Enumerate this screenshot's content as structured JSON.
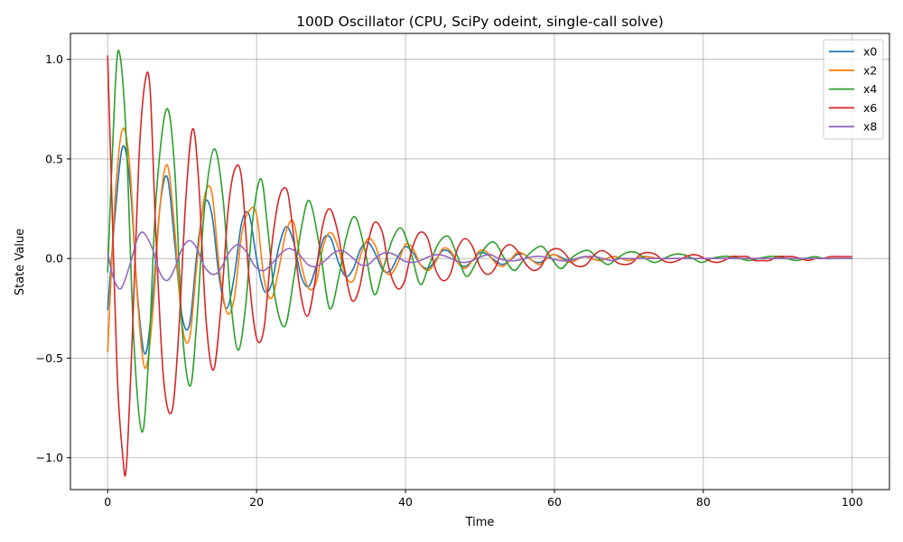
{
  "chart_data": {
    "type": "line",
    "title": "100D Oscillator (CPU, SciPy odeint, single-call solve)",
    "xlabel": "Time",
    "ylabel": "State Value",
    "xlim": [
      -5,
      105
    ],
    "ylim": [
      -1.16,
      1.13
    ],
    "xticks": [
      0,
      20,
      40,
      60,
      80,
      100
    ],
    "xtick_labels": [
      "0",
      "20",
      "40",
      "60",
      "80",
      "100"
    ],
    "yticks": [
      -1.0,
      -0.5,
      0.0,
      0.5,
      1.0
    ],
    "ytick_labels": [
      "−1.0",
      "−0.5",
      "0.0",
      "0.5",
      "1.0"
    ],
    "grid": true,
    "legend_position": "top-right",
    "series": [
      {
        "name": "x0",
        "color": "#1f77b4",
        "x": [
          0,
          1,
          2,
          3,
          4,
          5,
          6,
          7,
          8,
          9,
          10,
          11,
          12,
          13,
          14,
          15,
          16,
          17,
          18,
          19,
          20,
          21,
          22,
          23,
          24,
          25,
          26,
          27,
          28,
          29,
          30,
          31,
          32,
          33,
          34,
          35,
          36,
          37,
          38,
          39,
          40,
          41,
          42,
          43,
          44,
          45,
          46,
          47,
          48,
          49,
          50,
          51,
          52,
          53,
          54,
          55,
          56,
          57,
          58,
          59,
          60,
          62,
          64,
          66,
          68,
          70,
          72,
          74,
          76,
          78,
          80,
          82,
          84,
          86,
          88,
          90,
          92,
          94,
          96,
          98,
          100
        ],
        "y": [
          -0.26,
          0.22,
          0.56,
          0.38,
          -0.18,
          -0.48,
          -0.22,
          0.25,
          0.41,
          0.08,
          -0.29,
          -0.33,
          0.03,
          0.28,
          0.22,
          -0.1,
          -0.25,
          -0.09,
          0.18,
          0.22,
          0.0,
          -0.16,
          -0.13,
          0.06,
          0.16,
          0.08,
          -0.09,
          -0.14,
          -0.04,
          0.1,
          0.1,
          -0.02,
          -0.09,
          -0.05,
          0.05,
          0.08,
          0.02,
          -0.06,
          -0.06,
          0.01,
          0.06,
          0.03,
          -0.03,
          -0.05,
          -0.01,
          0.04,
          0.03,
          -0.02,
          -0.04,
          -0.01,
          0.03,
          0.02,
          -0.01,
          -0.03,
          -0.01,
          0.02,
          0.02,
          -0.01,
          -0.02,
          0.0,
          0.02,
          -0.01,
          0.01,
          -0.01,
          0.01,
          -0.01,
          0.01,
          0.0,
          0.0,
          0.0,
          0.0,
          0.0,
          0.0,
          0.0,
          0.0,
          0.0,
          0.0,
          0.0,
          0.0,
          0.0,
          0.0
        ]
      },
      {
        "name": "x2",
        "color": "#ff7f0e",
        "x": [
          0,
          1,
          2,
          3,
          4,
          5,
          6,
          7,
          8,
          9,
          10,
          11,
          12,
          13,
          14,
          15,
          16,
          17,
          18,
          19,
          20,
          21,
          22,
          23,
          24,
          25,
          26,
          27,
          28,
          29,
          30,
          31,
          32,
          33,
          34,
          35,
          36,
          37,
          38,
          39,
          40,
          41,
          42,
          43,
          44,
          45,
          46,
          47,
          48,
          49,
          50,
          51,
          52,
          53,
          54,
          55,
          56,
          57,
          58,
          59,
          60,
          62,
          64,
          66,
          68,
          70,
          72,
          74,
          76,
          78,
          80,
          82,
          84,
          86,
          88,
          90,
          92,
          94,
          96,
          98,
          100
        ],
        "y": [
          -0.47,
          0.3,
          0.65,
          0.45,
          -0.2,
          -0.55,
          -0.3,
          0.25,
          0.47,
          0.15,
          -0.33,
          -0.4,
          -0.02,
          0.31,
          0.33,
          -0.05,
          -0.27,
          -0.2,
          0.12,
          0.24,
          0.22,
          -0.1,
          -0.2,
          -0.05,
          0.14,
          0.18,
          -0.03,
          -0.15,
          -0.12,
          0.07,
          0.13,
          0.05,
          -0.09,
          -0.11,
          0.02,
          0.1,
          0.06,
          -0.05,
          -0.08,
          -0.02,
          0.07,
          0.05,
          -0.03,
          -0.06,
          -0.02,
          0.05,
          0.04,
          -0.02,
          -0.05,
          -0.01,
          0.04,
          0.03,
          -0.02,
          -0.04,
          -0.01,
          0.03,
          0.02,
          -0.01,
          -0.03,
          0.0,
          0.02,
          -0.02,
          0.01,
          -0.01,
          0.01,
          -0.01,
          0.01,
          0.0,
          0.0,
          0.0,
          0.0,
          0.0,
          0.0,
          0.0,
          0.0,
          0.0,
          0.0,
          0.0,
          0.0,
          0.0,
          0.0
        ]
      },
      {
        "name": "x4",
        "color": "#2ca02c",
        "x": [
          0,
          1,
          1.6,
          2.5,
          3.5,
          4.6,
          5.5,
          6.5,
          7.9,
          9,
          10,
          11.1,
          12,
          13,
          14.3,
          15.5,
          16.5,
          17.5,
          18.5,
          19.5,
          20.6,
          21.5,
          22.5,
          23.8,
          25,
          26,
          27.1,
          28.5,
          29.8,
          31,
          32,
          33.2,
          34.5,
          35.8,
          37,
          38.3,
          39.5,
          40.8,
          42,
          43.2,
          44.5,
          45.8,
          47,
          48.2,
          49.5,
          50.8,
          52,
          53.3,
          54.6,
          55.8,
          57.1,
          58.4,
          59.6,
          60.9,
          62.2,
          63.4,
          64.6,
          65.9,
          67.2,
          68.4,
          69.7,
          71,
          72.2,
          73.5,
          74.7,
          76,
          77.3,
          78.6,
          79.8,
          81.1,
          82.4,
          83.6,
          84.9,
          86.1,
          87.4,
          88.7,
          89.9,
          91.2,
          92.5,
          93.7,
          95,
          96.2,
          97.5,
          98.8,
          100
        ],
        "y": [
          -0.07,
          0.85,
          1.03,
          0.6,
          -0.4,
          -0.87,
          -0.5,
          0.3,
          0.75,
          0.45,
          -0.35,
          -0.64,
          -0.3,
          0.25,
          0.55,
          0.3,
          -0.2,
          -0.46,
          -0.25,
          0.2,
          0.4,
          0.15,
          -0.2,
          -0.34,
          -0.1,
          0.15,
          0.29,
          0.05,
          -0.25,
          -0.1,
          0.1,
          0.21,
          0.05,
          -0.18,
          -0.05,
          0.1,
          0.15,
          0.02,
          -0.13,
          -0.03,
          0.08,
          0.11,
          0.01,
          -0.09,
          -0.02,
          0.06,
          0.08,
          0.0,
          -0.06,
          -0.01,
          0.04,
          0.06,
          0.0,
          -0.05,
          0.0,
          0.03,
          0.04,
          0.0,
          -0.03,
          0.0,
          0.03,
          0.03,
          0.0,
          -0.02,
          0.0,
          0.02,
          0.02,
          0.0,
          -0.02,
          0.0,
          0.01,
          0.01,
          0.0,
          -0.01,
          0.0,
          0.01,
          0.01,
          0.0,
          -0.01,
          0.0,
          0.01,
          0.0,
          0.0,
          0.0,
          0.0
        ]
      },
      {
        "name": "x6",
        "color": "#d62728",
        "x": [
          0,
          0.6,
          1.3,
          2,
          2.5,
          3.3,
          4.2,
          5,
          5.7,
          6.5,
          7.5,
          8.6,
          9.5,
          10.5,
          11.4,
          12.2,
          13.2,
          14.2,
          15.2,
          16.2,
          17.1,
          18,
          19,
          20,
          21,
          22,
          23,
          24,
          24.7,
          25.8,
          26.8,
          27.7,
          28.8,
          29.8,
          30.8,
          31.8,
          32.8,
          33.8,
          34.8,
          35.8,
          36.9,
          37.8,
          38.9,
          39.9,
          40.9,
          41.9,
          43,
          44,
          45,
          46,
          47,
          48,
          49,
          50,
          51,
          52,
          53,
          54,
          55,
          56.2,
          57.2,
          58.2,
          59.2,
          60.3,
          61.3,
          62.3,
          63.3,
          64.3,
          65.4,
          66.4,
          67.4,
          68.4,
          69.5,
          70.5,
          71.5,
          72.5,
          73.6,
          74.6,
          75.6,
          76.6,
          77.7,
          78.7,
          79.7,
          80.7,
          81.8,
          82.8,
          83.8,
          84.8,
          85.9,
          86.9,
          87.9,
          88.9,
          90,
          91,
          92,
          93,
          94.1,
          95.1,
          96.1,
          97.1,
          98.2,
          99.2,
          100
        ],
        "y": [
          1.02,
          0.25,
          -0.6,
          -0.98,
          -1.05,
          -0.4,
          0.5,
          0.88,
          0.85,
          0.1,
          -0.6,
          -0.77,
          -0.4,
          0.3,
          0.65,
          0.4,
          -0.3,
          -0.56,
          -0.25,
          0.25,
          0.45,
          0.4,
          -0.1,
          -0.4,
          -0.35,
          0.05,
          0.3,
          0.35,
          0.2,
          -0.15,
          -0.29,
          -0.15,
          0.15,
          0.25,
          0.15,
          -0.05,
          -0.21,
          -0.15,
          0.05,
          0.18,
          0.13,
          -0.05,
          -0.15,
          -0.11,
          0.05,
          0.13,
          0.1,
          -0.05,
          -0.11,
          -0.08,
          0.05,
          0.1,
          0.06,
          -0.04,
          -0.08,
          -0.05,
          0.04,
          0.07,
          0.04,
          -0.03,
          -0.06,
          -0.04,
          0.03,
          0.05,
          0.03,
          -0.02,
          -0.04,
          -0.03,
          0.02,
          0.04,
          0.02,
          -0.02,
          -0.03,
          -0.02,
          0.02,
          0.03,
          0.02,
          -0.01,
          -0.02,
          -0.01,
          0.01,
          0.02,
          0.01,
          -0.01,
          -0.02,
          -0.01,
          0.01,
          0.01,
          0.01,
          -0.01,
          -0.01,
          -0.01,
          0.01,
          0.01,
          0.01,
          0.0,
          -0.01,
          0.0,
          0.0,
          0.01,
          0.01,
          0.01,
          0.01
        ]
      },
      {
        "name": "x8",
        "color": "#9467bd",
        "x": [
          0,
          0.8,
          1.8,
          3,
          4,
          4.8,
          6,
          7,
          8,
          9,
          10,
          11,
          12,
          13,
          14.2,
          15.2,
          16.3,
          17.5,
          18.7,
          19.8,
          21,
          22.2,
          23.4,
          24.5,
          25.7,
          26.9,
          28,
          29.2,
          30.4,
          31.5,
          32.7,
          33.9,
          35,
          36.2,
          37.4,
          38.5,
          39.7,
          40.9,
          42,
          43.2,
          44.4,
          45.5,
          46.7,
          47.9,
          49,
          50.2,
          51.4,
          52.5,
          53.7,
          54.9,
          56,
          57.2,
          58.4,
          59.5,
          60.7,
          61.9,
          63,
          64.2,
          65.4,
          66.5,
          67.7,
          68.9,
          70,
          71.2,
          72.4,
          73.5,
          74.7,
          75.9,
          77,
          78.2,
          79.4,
          80.5,
          81.7,
          82.9,
          84,
          85.2,
          86.4,
          87.5,
          88.7,
          89.9,
          91,
          92.2,
          93.4,
          94.5,
          95.7,
          96.9,
          98,
          99.2,
          100
        ],
        "y": [
          0.03,
          -0.1,
          -0.15,
          -0.03,
          0.1,
          0.13,
          0.05,
          -0.07,
          -0.11,
          -0.05,
          0.05,
          0.09,
          0.05,
          -0.04,
          -0.08,
          -0.05,
          0.03,
          0.07,
          0.03,
          -0.04,
          -0.06,
          -0.02,
          0.03,
          0.05,
          0.02,
          -0.03,
          -0.04,
          -0.01,
          0.03,
          0.04,
          0.01,
          -0.03,
          -0.03,
          0.01,
          0.03,
          0.02,
          -0.01,
          -0.02,
          -0.01,
          0.01,
          0.02,
          0.01,
          -0.01,
          -0.02,
          -0.01,
          0.01,
          0.02,
          0.0,
          -0.01,
          -0.01,
          0.0,
          0.01,
          0.01,
          0.0,
          -0.01,
          -0.01,
          0.0,
          0.01,
          0.01,
          0.0,
          -0.01,
          0.0,
          0.0,
          0.0,
          0.0,
          0.0,
          0.0,
          0.0,
          0.0,
          0.0,
          0.0,
          0.0,
          0.0,
          0.0,
          0.0,
          0.0,
          0.0,
          0.0,
          0.0,
          0.0,
          0.0,
          0.0,
          0.0,
          0.0,
          0.0,
          0.0,
          0.0,
          0.0,
          0.0
        ]
      }
    ]
  }
}
